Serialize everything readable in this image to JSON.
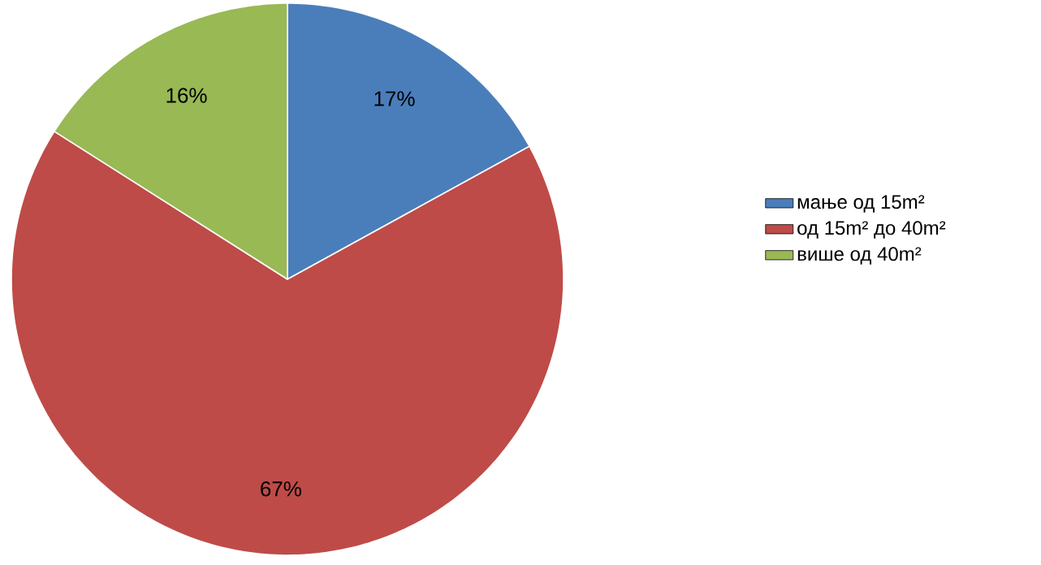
{
  "chart_data": {
    "type": "pie",
    "categories": [
      "мање од 15m²",
      "од 15m² до 40m²",
      "више од 40m²"
    ],
    "values": [
      17,
      67,
      16
    ],
    "value_labels": [
      "17%",
      "67%",
      "16%"
    ],
    "colors": [
      "#4a7ebb",
      "#be4b48",
      "#98b954"
    ],
    "legend": "right"
  }
}
